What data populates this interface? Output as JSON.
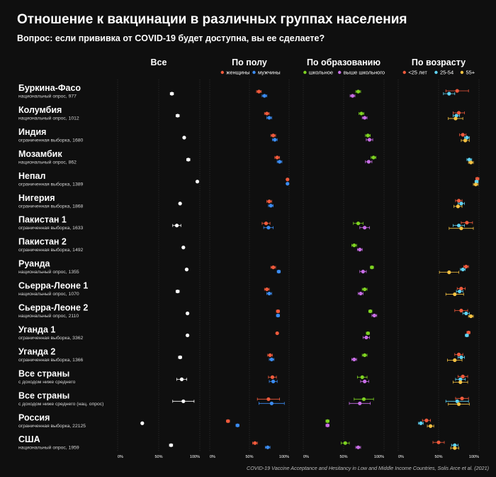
{
  "header": {
    "title": "Отношение к вакцинации в различных группах населения",
    "subtitle": "Вопрос: если прививка от COVID-19 будет доступна, вы ее сделаете?"
  },
  "source": "COVID-19 Vaccine Acceptance and Hesitancy in Low and Middle Income Countries, Solis Arce et al. (2021)",
  "colors": {
    "background": "#0f0f0f",
    "all": "#ffffff",
    "women": "#f05a3c",
    "men": "#3b8cf2",
    "school": "#7ed321",
    "higher": "#c86ee6",
    "age_lt25": "#f05a3c",
    "age_25_54": "#5fd4f5",
    "age_55": "#f5c242"
  },
  "chart_data": {
    "type": "scatter",
    "xlim": [
      0,
      100
    ],
    "ticks": [
      "0%",
      "50%",
      "100%"
    ],
    "panels": [
      {
        "key": "all",
        "title": "Все",
        "legend": []
      },
      {
        "key": "gender",
        "title": "По полу",
        "legend": [
          {
            "label": "женщины",
            "color": "#f05a3c"
          },
          {
            "label": "мужчины",
            "color": "#3b8cf2"
          }
        ]
      },
      {
        "key": "edu",
        "title": "По образованию",
        "legend": [
          {
            "label": "школьное",
            "color": "#7ed321"
          },
          {
            "label": "выше школьного",
            "color": "#c86ee6"
          }
        ]
      },
      {
        "key": "age",
        "title": "По возрасту",
        "legend": [
          {
            "label": "<25 лет",
            "color": "#f05a3c"
          },
          {
            "label": "25-54",
            "color": "#5fd4f5"
          },
          {
            "label": "55+",
            "color": "#f5c242"
          }
        ]
      }
    ],
    "rows": [
      {
        "country": "Буркина-Фасо",
        "sample": "национальный опрос, 977",
        "all": [
          66,
          2
        ],
        "women": [
          62,
          3
        ],
        "men": [
          69,
          3
        ],
        "school": [
          68,
          3
        ],
        "higher": [
          61,
          3
        ],
        "age_lt25": [
          73,
          14
        ],
        "age_25_54": [
          63,
          7
        ],
        "age_55": null
      },
      {
        "country": "Колумбия",
        "sample": "национальный опрос, 1012",
        "all": [
          73,
          2
        ],
        "women": [
          72,
          3
        ],
        "men": [
          75,
          3
        ],
        "school": [
          72,
          3
        ],
        "higher": [
          76,
          3
        ],
        "age_lt25": [
          75,
          7
        ],
        "age_25_54": [
          72,
          4
        ],
        "age_55": [
          71,
          9
        ]
      },
      {
        "country": "Индия",
        "sample": "ограниченная выборка, 1680",
        "all": [
          81,
          1
        ],
        "women": [
          80,
          3
        ],
        "men": [
          82,
          3
        ],
        "school": [
          80,
          3
        ],
        "higher": [
          82,
          4
        ],
        "age_lt25": [
          80,
          4
        ],
        "age_25_54": [
          85,
          3
        ],
        "age_55": [
          83,
          5
        ]
      },
      {
        "country": "Мозамбик",
        "sample": "национальный опрос, 862",
        "all": [
          86,
          2
        ],
        "women": [
          85,
          3
        ],
        "men": [
          88,
          3
        ],
        "school": [
          87,
          3
        ],
        "higher": [
          81,
          4
        ],
        "age_lt25": null,
        "age_25_54": [
          88,
          3
        ],
        "age_55": [
          90,
          3
        ]
      },
      {
        "country": "Непал",
        "sample": "ограниченная выборка, 1389",
        "all": [
          97,
          1
        ],
        "women": [
          98,
          1
        ],
        "men": [
          98,
          1
        ],
        "school": null,
        "higher": null,
        "age_lt25": [
          98,
          2
        ],
        "age_25_54": [
          97,
          2
        ],
        "age_55": [
          96,
          3
        ]
      },
      {
        "country": "Нигерия",
        "sample": "ограниченная выборка, 1868",
        "all": [
          76,
          1
        ],
        "women": [
          75,
          3
        ],
        "men": [
          77,
          3
        ],
        "school": null,
        "higher": null,
        "age_lt25": [
          75,
          4
        ],
        "age_25_54": [
          78,
          4
        ],
        "age_55": [
          74,
          5
        ]
      },
      {
        "country": "Пакистан 1",
        "sample": "ограниченная выборка, 1633",
        "all": [
          72,
          5
        ],
        "women": [
          71,
          5
        ],
        "men": [
          74,
          6
        ],
        "school": [
          68,
          6
        ],
        "higher": [
          76,
          6
        ],
        "age_lt25": [
          85,
          7
        ],
        "age_25_54": [
          75,
          7
        ],
        "age_55": [
          78,
          15
        ]
      },
      {
        "country": "Пакистан 2",
        "sample": "ограниченная выборка, 1492",
        "all": [
          80,
          1
        ],
        "women": null,
        "men": null,
        "school": [
          63,
          3
        ],
        "higher": [
          70,
          3
        ],
        "age_lt25": null,
        "age_25_54": null,
        "age_55": null
      },
      {
        "country": "Руанда",
        "sample": "национальный опрос, 1355",
        "all": [
          84,
          1
        ],
        "women": [
          80,
          3
        ],
        "men": [
          87,
          2
        ],
        "school": [
          85,
          2
        ],
        "higher": [
          74,
          4
        ],
        "age_lt25": [
          84,
          3
        ],
        "age_25_54": [
          80,
          3
        ],
        "age_55": [
          63,
          12
        ]
      },
      {
        "country": "Сьерра-Леоне 1",
        "sample": "национальный опрос, 1070",
        "all": [
          73,
          2
        ],
        "women": [
          72,
          3
        ],
        "men": [
          75,
          3
        ],
        "school": [
          76,
          3
        ],
        "higher": [
          71,
          3
        ],
        "age_lt25": [
          78,
          5
        ],
        "age_25_54": [
          76,
          4
        ],
        "age_55": [
          70,
          11
        ]
      },
      {
        "country": "Сьерра-Леоне 2",
        "sample": "национальный опрос, 2110",
        "all": [
          85,
          1
        ],
        "women": [
          86,
          2
        ],
        "men": [
          86,
          2
        ],
        "school": [
          83,
          2
        ],
        "higher": [
          88,
          3
        ],
        "age_lt25": [
          78,
          8
        ],
        "age_25_54": [
          84,
          4
        ],
        "age_55": [
          90,
          3
        ]
      },
      {
        "country": "Уганда 1",
        "sample": "ограниченная выборка, 3362",
        "all": [
          85,
          1
        ],
        "women": [
          85,
          1
        ],
        "men": null,
        "school": [
          80,
          2
        ],
        "higher": [
          78,
          4
        ],
        "age_lt25": [
          87,
          2
        ],
        "age_25_54": [
          85,
          2
        ],
        "age_55": null
      },
      {
        "country": "Уганда 2",
        "sample": "ограниченная выборка, 1366",
        "all": [
          76,
          2
        ],
        "women": [
          76,
          3
        ],
        "men": [
          78,
          3
        ],
        "school": [
          76,
          3
        ],
        "higher": [
          63,
          3
        ],
        "age_lt25": [
          75,
          5
        ],
        "age_25_54": [
          78,
          4
        ],
        "age_55": [
          70,
          9
        ]
      },
      {
        "country": "Все страны",
        "sample": "с доходом ниже среднего",
        "all": [
          78,
          6
        ],
        "women": [
          79,
          5
        ],
        "men": [
          80,
          5
        ],
        "school": [
          73,
          6
        ],
        "higher": [
          76,
          5
        ],
        "age_lt25": [
          80,
          6
        ],
        "age_25_54": [
          77,
          6
        ],
        "age_55": [
          77,
          9
        ]
      },
      {
        "country": "Все страны",
        "sample": "с доходом ниже среднего (нац. опрос)",
        "all": [
          80,
          13
        ],
        "women": [
          74,
          14
        ],
        "men": [
          78,
          16
        ],
        "school": [
          75,
          12
        ],
        "higher": [
          70,
          13
        ],
        "age_lt25": [
          79,
          8
        ],
        "age_25_54": [
          73,
          14
        ],
        "age_55": [
          75,
          13
        ]
      },
      {
        "country": "Россия",
        "sample": "ограниченная выборка, 22125",
        "all": [
          30,
          1
        ],
        "women": [
          23,
          2
        ],
        "men": [
          35,
          2
        ],
        "school": [
          30,
          2
        ],
        "higher": [
          30,
          2
        ],
        "age_lt25": [
          35,
          5
        ],
        "age_25_54": [
          28,
          3
        ],
        "age_55": [
          40,
          4
        ]
      },
      {
        "country": "США",
        "sample": "национальный опрос, 1959",
        "all": [
          65,
          2
        ],
        "women": [
          57,
          3
        ],
        "men": [
          73,
          3
        ],
        "school": [
          52,
          5
        ],
        "higher": [
          68,
          3
        ],
        "age_lt25": [
          50,
          7
        ],
        "age_25_54": [
          70,
          4
        ],
        "age_55": [
          70,
          5
        ]
      }
    ]
  }
}
